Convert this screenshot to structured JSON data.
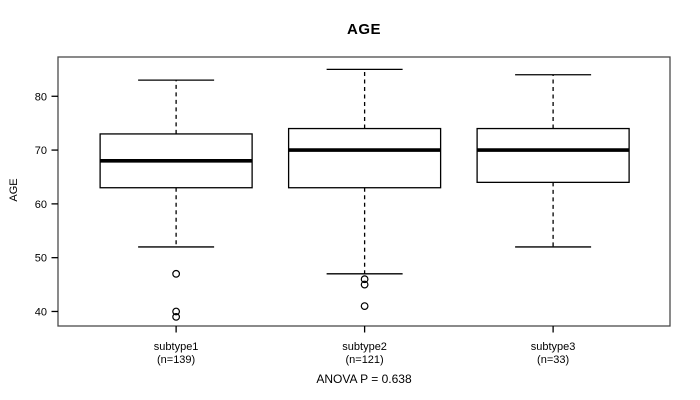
{
  "figure": {
    "title": "AGE",
    "y_axis_title": "AGE",
    "caption": "ANOVA P = 0.638"
  },
  "chart_data": {
    "type": "boxplot",
    "title": "AGE",
    "ylabel": "AGE",
    "xlabel": "",
    "annotation": "ANOVA P = 0.638",
    "yticks": [
      40,
      50,
      60,
      70,
      80
    ],
    "ylim": [
      37.3,
      87.3
    ],
    "grid": false,
    "legend": "none",
    "categories": [
      "subtype1",
      "subtype2",
      "subtype3"
    ],
    "groups": [
      {
        "label": "subtype1",
        "sublabel": "(n=139)",
        "n": 139,
        "whisker_low": 52,
        "q1": 63,
        "median": 68,
        "q3": 73,
        "whisker_high": 83,
        "outliers": [
          47,
          40,
          39
        ]
      },
      {
        "label": "subtype2",
        "sublabel": "(n=121)",
        "n": 121,
        "whisker_low": 47,
        "q1": 63,
        "median": 70,
        "q3": 74,
        "whisker_high": 85,
        "outliers": [
          46,
          45,
          41
        ]
      },
      {
        "label": "subtype3",
        "sublabel": "(n=33)",
        "n": 33,
        "whisker_low": 52,
        "q1": 64,
        "median": 70,
        "q3": 74,
        "whisker_high": 84,
        "outliers": []
      }
    ]
  },
  "colors": {
    "line": "#000000",
    "frame": "#4a4a4a",
    "background": "#ffffff"
  }
}
